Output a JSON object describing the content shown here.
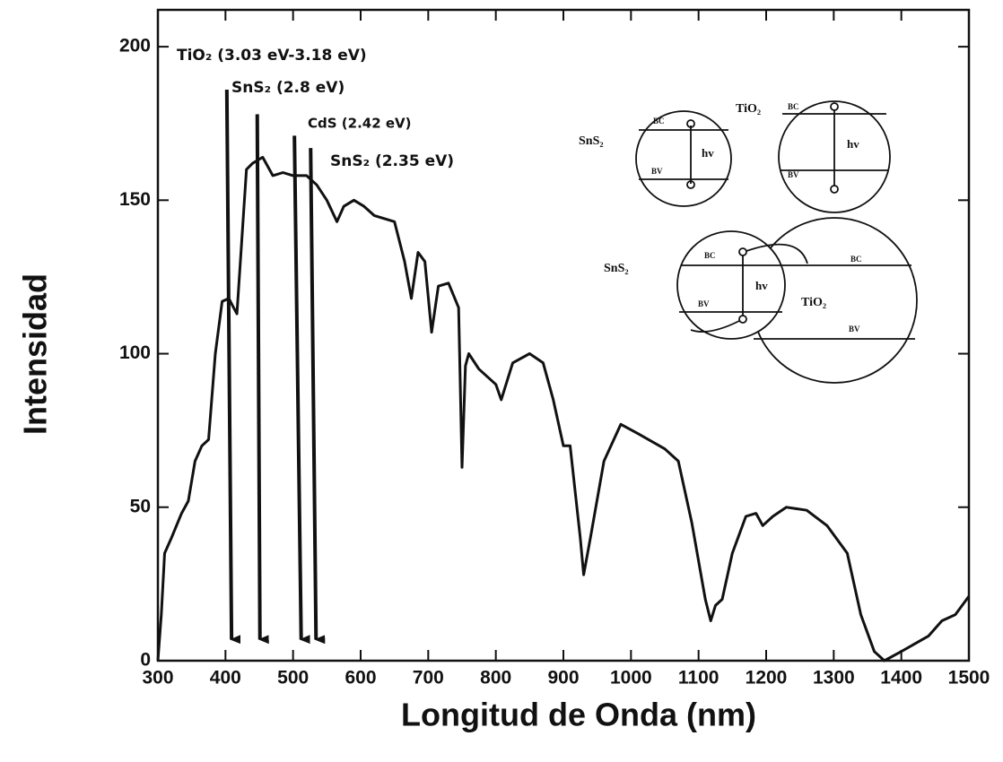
{
  "chart_data": {
    "type": "line",
    "x_label": "Longitud de Onda (nm)",
    "y_label": "Intensidad",
    "color": "#111111",
    "xlim": [
      300,
      1500
    ],
    "ylim": [
      0,
      212
    ],
    "xticks": [
      300,
      400,
      500,
      600,
      700,
      800,
      900,
      1000,
      1100,
      1200,
      1300,
      1400,
      1500
    ],
    "yticks": [
      0,
      50,
      100,
      150,
      200
    ],
    "x": [
      300,
      305,
      310,
      320,
      335,
      345,
      355,
      365,
      375,
      385,
      395,
      405,
      412,
      417,
      431,
      440,
      455,
      470,
      485,
      500,
      520,
      535,
      550,
      565,
      575,
      590,
      605,
      620,
      650,
      665,
      675,
      685,
      695,
      705,
      715,
      730,
      745,
      750,
      755,
      760,
      775,
      800,
      808,
      825,
      850,
      870,
      885,
      900,
      910,
      925,
      930,
      940,
      960,
      985,
      1010,
      1050,
      1070,
      1090,
      1110,
      1118,
      1125,
      1135,
      1150,
      1170,
      1185,
      1195,
      1210,
      1230,
      1260,
      1290,
      1320,
      1340,
      1360,
      1375,
      1400,
      1440,
      1460,
      1480,
      1500
    ],
    "values": [
      0,
      15,
      35,
      40,
      48,
      52,
      65,
      70,
      72,
      100,
      117,
      118,
      115,
      113,
      160,
      162,
      164,
      158,
      159,
      158,
      158,
      155,
      150,
      143,
      148,
      150,
      148,
      145,
      143,
      130,
      118,
      133,
      130,
      107,
      122,
      123,
      115,
      63,
      96,
      100,
      95,
      90,
      85,
      97,
      100,
      97,
      85,
      70,
      70,
      40,
      28,
      40,
      65,
      77,
      74,
      69,
      65,
      45,
      20,
      13,
      18,
      20,
      35,
      47,
      48,
      44,
      47,
      50,
      49,
      44,
      35,
      15,
      3,
      0,
      3,
      8,
      13,
      15,
      21
    ],
    "annotations": [
      {
        "text": "TiO₂ (3.03 eV-3.18 eV)",
        "x": [
          402,
          409
        ],
        "y": [
          186,
          4
        ]
      },
      {
        "text": "SnS₂ (2.8 eV)",
        "x": [
          447,
          451
        ],
        "y": [
          178,
          4
        ]
      },
      {
        "text": "CdS (2.42 eV)",
        "x": [
          502,
          512
        ],
        "y": [
          171,
          4
        ]
      },
      {
        "text": "SnS₂ (2.35 eV)",
        "x": [
          526,
          534
        ],
        "y": [
          167,
          4
        ]
      }
    ],
    "insets": {
      "sns2_alone": {
        "label": "SnS₂",
        "bc": "BC",
        "bv": "BV",
        "hv": "hv"
      },
      "tio2_alone": {
        "label": "TiO₂",
        "bc": "BC",
        "bv": "BV",
        "hv": "hv"
      },
      "junction": {
        "sns2": "SnS₂",
        "tio2": "TiO₂",
        "bc_left": "BC",
        "bv_left": "BV",
        "hv": "hv",
        "bc_right": "BC",
        "bv_right": "BV"
      }
    }
  }
}
